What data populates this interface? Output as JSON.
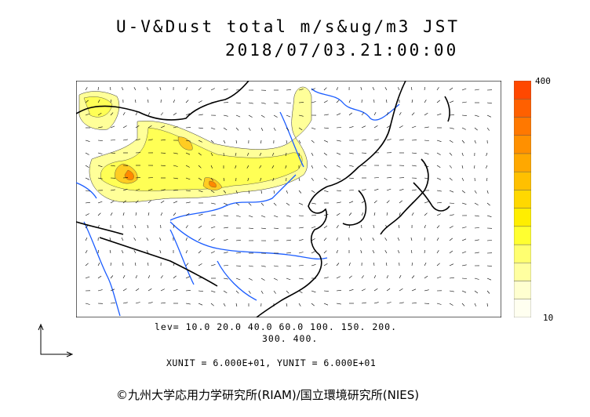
{
  "title": {
    "line1": "U-V&Dust total m/s&ug/m3 JST",
    "line2": "2018/07/03.21:00:00"
  },
  "colorbar": {
    "max_label": "400",
    "min_label": "10",
    "levels": [
      10,
      20,
      40,
      60,
      100,
      150,
      200,
      300,
      400
    ],
    "colors": [
      "#fffff0",
      "#ffffd0",
      "#ffffa0",
      "#ffff70",
      "#ffff30",
      "#ffee00",
      "#ffd800",
      "#ffc000",
      "#ffa800",
      "#ff9000",
      "#ff7800",
      "#ff6000",
      "#ff4800"
    ]
  },
  "levels_text": {
    "line1": "lev= 10.0 20.0 40.0 60.0 100. 150. 200.",
    "line2": "300. 400."
  },
  "units_text": "XUNIT = 6.000E+01, YUNIT = 6.000E+01",
  "copyright": "©九州大学応用力学研究所(RIAM)/国立環境研究所(NIES)",
  "icons": {
    "axes": "uv-reference-axes-icon"
  },
  "colors": {
    "coast": "#000000",
    "river": "#1a5cff",
    "grid": "#888888"
  }
}
